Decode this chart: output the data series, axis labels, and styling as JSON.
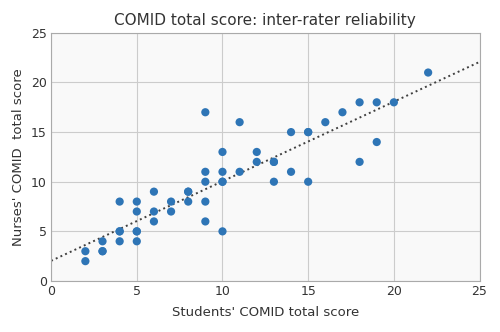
{
  "title": "COMID total score: inter-rater reliability",
  "xlabel": "Students' COMID total score",
  "ylabel": "Nurses' COMID  total score",
  "xlim": [
    0,
    25
  ],
  "ylim": [
    0,
    25
  ],
  "xticks": [
    0,
    5,
    10,
    15,
    20,
    25
  ],
  "yticks": [
    0,
    5,
    10,
    15,
    20,
    25
  ],
  "scatter_color": "#2E75B6",
  "trendline_color": "#404040",
  "scatter_x": [
    2,
    2,
    3,
    3,
    3,
    4,
    4,
    4,
    4,
    5,
    5,
    5,
    5,
    5,
    6,
    6,
    6,
    7,
    7,
    8,
    8,
    8,
    9,
    9,
    9,
    9,
    9,
    10,
    10,
    10,
    10,
    10,
    11,
    11,
    12,
    12,
    13,
    13,
    13,
    14,
    14,
    15,
    15,
    15,
    16,
    17,
    18,
    18,
    19,
    19,
    20,
    22
  ],
  "scatter_y": [
    2,
    3,
    3,
    3,
    4,
    4,
    5,
    5,
    8,
    4,
    5,
    5,
    7,
    8,
    6,
    7,
    9,
    7,
    8,
    8,
    9,
    9,
    6,
    8,
    10,
    11,
    17,
    5,
    10,
    10,
    11,
    13,
    11,
    16,
    12,
    13,
    10,
    12,
    12,
    11,
    15,
    10,
    15,
    15,
    16,
    17,
    12,
    18,
    14,
    18,
    18,
    21
  ],
  "background_color": "#ffffff",
  "plot_bg_color": "#f9f9f9",
  "grid_color": "#cccccc",
  "title_fontsize": 11,
  "label_fontsize": 9.5,
  "tick_fontsize": 9,
  "spine_color": "#aaaaaa"
}
